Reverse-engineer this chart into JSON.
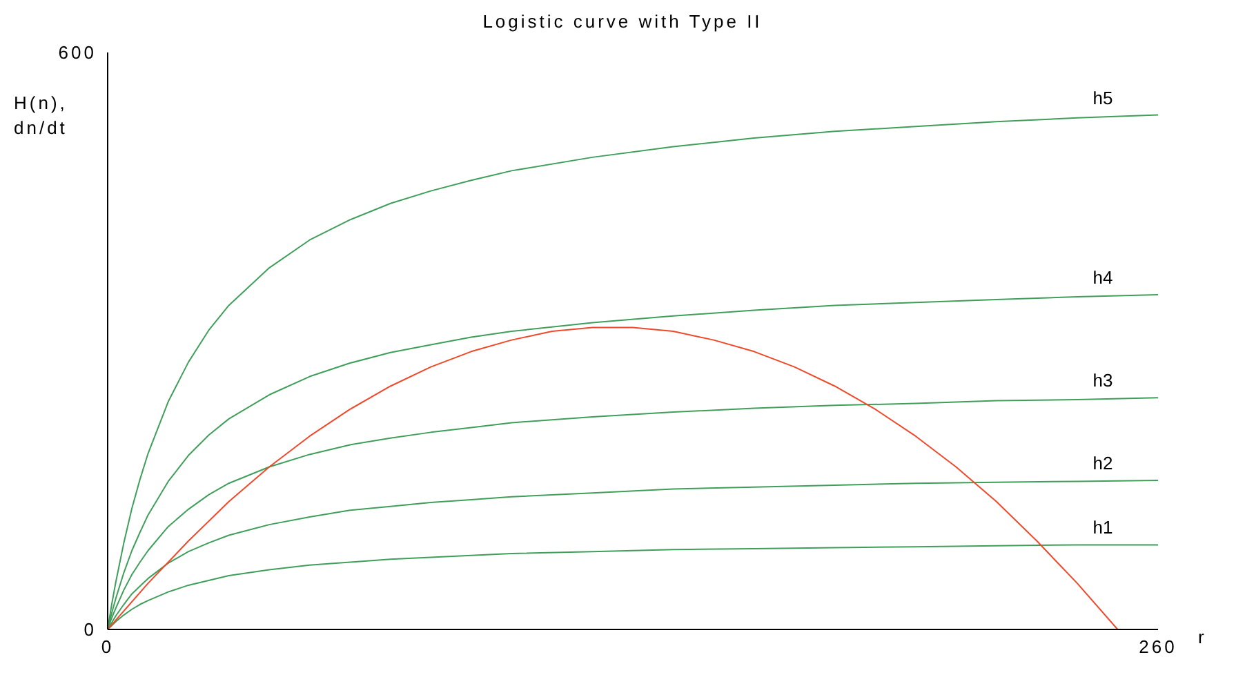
{
  "chart_data": {
    "type": "line",
    "title": "Logistic curve with Type II",
    "xlabel": "r",
    "ylabel": "H(n), dn/dt",
    "x": [
      0,
      1,
      2,
      4,
      6,
      8,
      10,
      15,
      20,
      25,
      30,
      40,
      50,
      60,
      70,
      80,
      90,
      100,
      120,
      140,
      160,
      180,
      200,
      220,
      240,
      260
    ],
    "xlim": [
      0,
      260
    ],
    "xticks": [
      0,
      260
    ],
    "ylim": [
      0,
      600
    ],
    "yticks": [
      0,
      600
    ],
    "grid": false,
    "legend": false,
    "marker": "none",
    "series": [
      {
        "name": "h5",
        "color": "#3f9f5a",
        "values": [
          0,
          26,
          49,
          90,
          126,
          156,
          183,
          237,
          278,
          311,
          337,
          376,
          405,
          426,
          443,
          456,
          467,
          477,
          491,
          502,
          511,
          518,
          523,
          528,
          532,
          535
        ]
      },
      {
        "name": "h4",
        "color": "#3f9f5a",
        "values": [
          0,
          17,
          32,
          59,
          82,
          101,
          119,
          154,
          181,
          202,
          219,
          244,
          263,
          277,
          288,
          296,
          304,
          310,
          319,
          326,
          332,
          337,
          340,
          343,
          346,
          348
        ]
      },
      {
        "name": "h3",
        "color": "#3f9f5a",
        "values": [
          0,
          12,
          22,
          41,
          57,
          70,
          82,
          107,
          125,
          140,
          152,
          169,
          182,
          192,
          199,
          205,
          210,
          215,
          221,
          226,
          230,
          233,
          235,
          238,
          239,
          241
        ]
      },
      {
        "name": "h2",
        "color": "#3f9f5a",
        "values": [
          0,
          7,
          14,
          26,
          37,
          45,
          53,
          69,
          81,
          90,
          98,
          109,
          117,
          124,
          128,
          132,
          135,
          138,
          142,
          146,
          148,
          150,
          152,
          153,
          154,
          155
        ]
      },
      {
        "name": "h1",
        "color": "#3f9f5a",
        "values": [
          0,
          4,
          8,
          15,
          21,
          26,
          30,
          39,
          46,
          51,
          56,
          62,
          67,
          70,
          73,
          75,
          77,
          79,
          81,
          83,
          84,
          85,
          86,
          87,
          88,
          88
        ]
      },
      {
        "color": "#f04828",
        "x": [
          0,
          10,
          20,
          30,
          40,
          50,
          60,
          70,
          80,
          90,
          100,
          110,
          120,
          125,
          130,
          140,
          150,
          160,
          170,
          180,
          190,
          200,
          210,
          220,
          230,
          240,
          250
        ],
        "values": [
          0,
          48,
          92,
          133,
          169,
          201,
          229,
          253,
          273,
          289,
          301,
          310,
          314,
          314,
          314,
          310,
          301,
          289,
          273,
          253,
          229,
          201,
          169,
          133,
          92,
          48,
          0
        ]
      }
    ]
  }
}
